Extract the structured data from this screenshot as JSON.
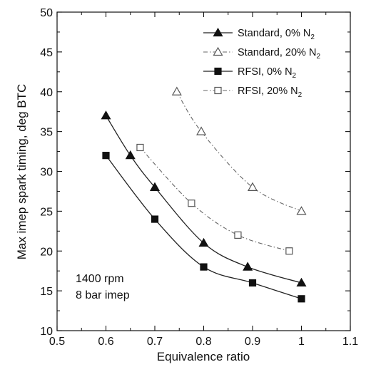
{
  "chart_data": {
    "type": "line",
    "xlabel": "Equivalence ratio",
    "ylabel": "Max imep spark timing, deg BTC",
    "xlim": [
      0.5,
      1.1
    ],
    "ylim": [
      10,
      50
    ],
    "x_ticks": [
      0.5,
      0.6,
      0.7,
      0.8,
      0.9,
      1,
      1.1
    ],
    "x_tick_labels": [
      "0.5",
      "0.6",
      "0.7",
      "0.8",
      "0.9",
      "1",
      "1.1"
    ],
    "y_ticks": [
      10,
      15,
      20,
      25,
      30,
      35,
      40,
      45,
      50
    ],
    "y_tick_labels": [
      "10",
      "15",
      "20",
      "25",
      "30",
      "35",
      "40",
      "45",
      "50"
    ],
    "grid": false,
    "legend_position": "top-right",
    "annotations": [
      "1400 rpm",
      "8 bar imep"
    ],
    "series": [
      {
        "name": "Standard, 0% N",
        "name_subscript": "2",
        "marker": "triangle-filled",
        "line": "solid",
        "x": [
          0.6,
          0.65,
          0.7,
          0.8,
          0.89,
          1.0
        ],
        "y": [
          37,
          32,
          28,
          21,
          18,
          16
        ]
      },
      {
        "name": "Standard, 20% N",
        "name_subscript": "2",
        "marker": "triangle-open",
        "line": "dashed",
        "x": [
          0.745,
          0.795,
          0.9,
          1.0
        ],
        "y": [
          40,
          35,
          28,
          25
        ]
      },
      {
        "name": "RFSI, 0% N",
        "name_subscript": "2",
        "marker": "square-filled",
        "line": "solid",
        "x": [
          0.6,
          0.7,
          0.8,
          0.9,
          1.0
        ],
        "y": [
          32,
          24,
          18,
          16,
          14
        ]
      },
      {
        "name": "RFSI, 20% N",
        "name_subscript": "2",
        "marker": "square-open",
        "line": "dashed",
        "x": [
          0.67,
          0.775,
          0.87,
          0.975
        ],
        "y": [
          33,
          26,
          22,
          20
        ]
      }
    ]
  }
}
